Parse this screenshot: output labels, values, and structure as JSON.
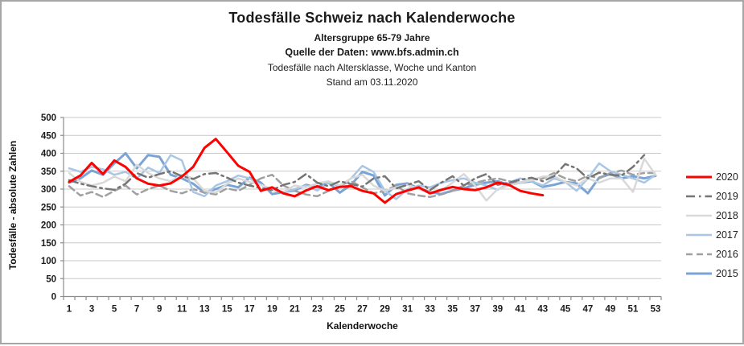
{
  "header": {
    "title": "Todesfälle Schweiz nach Kalenderwoche",
    "subtitle_age": "Altersgruppe 65-79 Jahre",
    "subtitle_source": "Quelle der Daten: www.bfs.admin.ch",
    "subtitle_dataset": "Todesfälle nach Altersklasse, Woche und Kanton",
    "subtitle_date": "Stand am 03.11.2020"
  },
  "chart_data": {
    "type": "line",
    "title": "Todesfälle Schweiz nach Kalenderwoche",
    "xlabel": "Kalenderwoche",
    "ylabel": "Todesfälle - absolute Zahlen",
    "ylim": [
      0,
      500
    ],
    "ytick_step": 50,
    "yticks": [
      0,
      50,
      100,
      150,
      200,
      250,
      300,
      350,
      400,
      450,
      500
    ],
    "xticks": [
      1,
      3,
      5,
      7,
      9,
      11,
      13,
      15,
      17,
      19,
      21,
      23,
      25,
      27,
      29,
      31,
      33,
      35,
      37,
      39,
      41,
      43,
      45,
      47,
      49,
      51,
      53
    ],
    "x_weeks": [
      1,
      2,
      3,
      4,
      5,
      6,
      7,
      8,
      9,
      10,
      11,
      12,
      13,
      14,
      15,
      16,
      17,
      18,
      19,
      20,
      21,
      22,
      23,
      24,
      25,
      26,
      27,
      28,
      29,
      30,
      31,
      32,
      33,
      34,
      35,
      36,
      37,
      38,
      39,
      40,
      41,
      42,
      43,
      44,
      45,
      46,
      47,
      48,
      49,
      50,
      51,
      52,
      53
    ],
    "grid": true,
    "legend_position": "right",
    "colors": {
      "grid": "#c9c9c9",
      "axis": "#8c8c8c",
      "tick_label": "#1a1a1a"
    },
    "series": [
      {
        "name": "2020",
        "color": "#ff0000",
        "style": "solid",
        "width": 3,
        "values": [
          320,
          338,
          373,
          342,
          380,
          362,
          330,
          315,
          310,
          316,
          335,
          362,
          415,
          440,
          403,
          365,
          348,
          295,
          305,
          288,
          280,
          296,
          308,
          297,
          306,
          308,
          295,
          288,
          262,
          286,
          296,
          305,
          288,
          298,
          306,
          300,
          297,
          305,
          318,
          312,
          295,
          288,
          283
        ]
      },
      {
        "name": "2019",
        "color": "#757575",
        "style": "dash-dot",
        "width": 2.5,
        "values": [
          325,
          315,
          308,
          302,
          298,
          315,
          345,
          332,
          342,
          350,
          336,
          328,
          342,
          345,
          332,
          318,
          310,
          303,
          297,
          312,
          320,
          342,
          318,
          308,
          322,
          314,
          307,
          330,
          336,
          302,
          312,
          322,
          297,
          318,
          336,
          310,
          330,
          342,
          312,
          318,
          326,
          332,
          322,
          336,
          370,
          358,
          330,
          346,
          340,
          338,
          362,
          395
        ]
      },
      {
        "name": "2018",
        "color": "#d9d9d9",
        "style": "solid",
        "width": 2.5,
        "values": [
          345,
          320,
          310,
          318,
          335,
          322,
          368,
          345,
          330,
          322,
          340,
          330,
          295,
          290,
          315,
          330,
          320,
          312,
          300,
          292,
          310,
          305,
          316,
          322,
          310,
          330,
          340,
          310,
          295,
          305,
          312,
          300,
          290,
          296,
          318,
          342,
          310,
          268,
          300,
          310,
          318,
          325,
          335,
          336,
          320,
          310,
          330,
          318,
          330,
          330,
          292,
          385,
          340
        ]
      },
      {
        "name": "2017",
        "color": "#aac6e5",
        "style": "solid",
        "width": 2.5,
        "values": [
          358,
          348,
          362,
          355,
          340,
          348,
          330,
          360,
          345,
          395,
          380,
          292,
          280,
          310,
          322,
          338,
          330,
          312,
          298,
          290,
          300,
          310,
          296,
          318,
          308,
          330,
          365,
          348,
          295,
          272,
          300,
          310,
          305,
          318,
          325,
          330,
          318,
          310,
          298,
          318,
          330,
          322,
          310,
          330,
          320,
          295,
          330,
          372,
          350,
          340,
          330,
          318,
          340
        ]
      },
      {
        "name": "2016",
        "color": "#a0a0a0",
        "style": "dashed",
        "width": 2.5,
        "values": [
          308,
          282,
          292,
          278,
          295,
          310,
          285,
          300,
          310,
          295,
          288,
          300,
          290,
          285,
          302,
          295,
          312,
          330,
          340,
          310,
          295,
          285,
          280,
          295,
          310,
          322,
          305,
          288,
          295,
          310,
          288,
          282,
          278,
          285,
          295,
          310,
          318,
          325,
          330,
          322,
          318,
          326,
          330,
          345,
          330,
          322,
          338,
          330,
          345,
          352,
          340,
          345,
          345
        ]
      },
      {
        "name": "2015",
        "color": "#7aa4d6",
        "style": "solid",
        "width": 3,
        "values": [
          318,
          330,
          352,
          340,
          372,
          400,
          358,
          395,
          390,
          340,
          330,
          315,
          290,
          300,
          312,
          305,
          332,
          318,
          286,
          292,
          296,
          312,
          305,
          318,
          290,
          312,
          348,
          338,
          282,
          312,
          316,
          302,
          292,
          286,
          296,
          302,
          312,
          318,
          322,
          312,
          318,
          322,
          306,
          312,
          320,
          316,
          288,
          332,
          342,
          330,
          336,
          330,
          337
        ]
      }
    ]
  }
}
